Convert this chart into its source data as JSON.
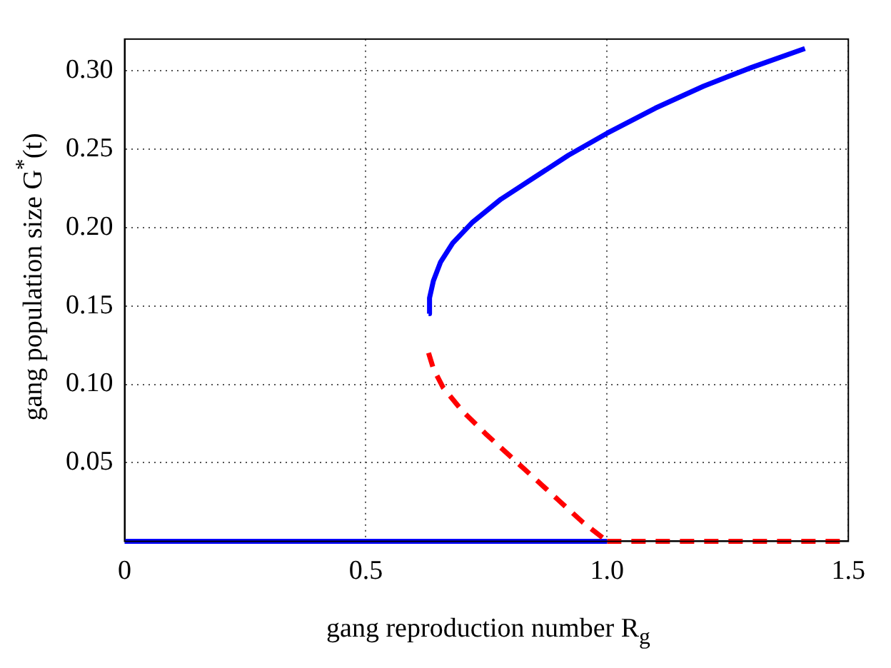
{
  "chart_data": {
    "type": "line",
    "xlabel": "gang reproduction number R$_{g}$",
    "ylabel": "gang population size G$^{*}$(t)",
    "xlim": [
      0,
      1.5
    ],
    "ylim": [
      0,
      0.32
    ],
    "xticks": [
      0,
      0.5,
      {
        "value": 1,
        "label": "1.0"
      },
      1.5
    ],
    "yticks": [
      0.05,
      {
        "value": 0.1,
        "label": "0.10"
      },
      0.15,
      {
        "value": 0.2,
        "label": "0.20"
      },
      0.25,
      {
        "value": 0.3,
        "label": "0.30"
      }
    ],
    "grid": true,
    "marker": "none",
    "series": [
      {
        "color": "#0000ff",
        "line_style": "solid",
        "x": [
          0.63,
          0.632,
          0.64,
          0.655,
          0.68,
          0.72,
          0.78,
          0.85,
          0.92,
          1.0,
          1.1,
          1.2,
          1.3,
          1.41
        ],
        "values": [
          0.145,
          0.155,
          0.166,
          0.178,
          0.19,
          0.203,
          0.218,
          0.232,
          0.246,
          0.26,
          0.276,
          0.29,
          0.302,
          0.314
        ]
      },
      {
        "color": "#ff0000",
        "line_style": "dashed",
        "x": [
          0.63,
          0.64,
          0.66,
          0.7,
          0.75,
          0.8,
          0.85,
          0.9,
          0.95,
          1.0
        ],
        "values": [
          0.12,
          0.11,
          0.098,
          0.083,
          0.068,
          0.054,
          0.04,
          0.026,
          0.012,
          0
        ]
      },
      {
        "color": "#0000ff",
        "line_style": "solid",
        "x": [
          0,
          1.0
        ],
        "values": [
          0,
          0
        ]
      },
      {
        "color": "#ff0000",
        "line_style": "dashed",
        "x": [
          1.0,
          1.5
        ],
        "values": [
          0,
          0
        ]
      }
    ]
  }
}
